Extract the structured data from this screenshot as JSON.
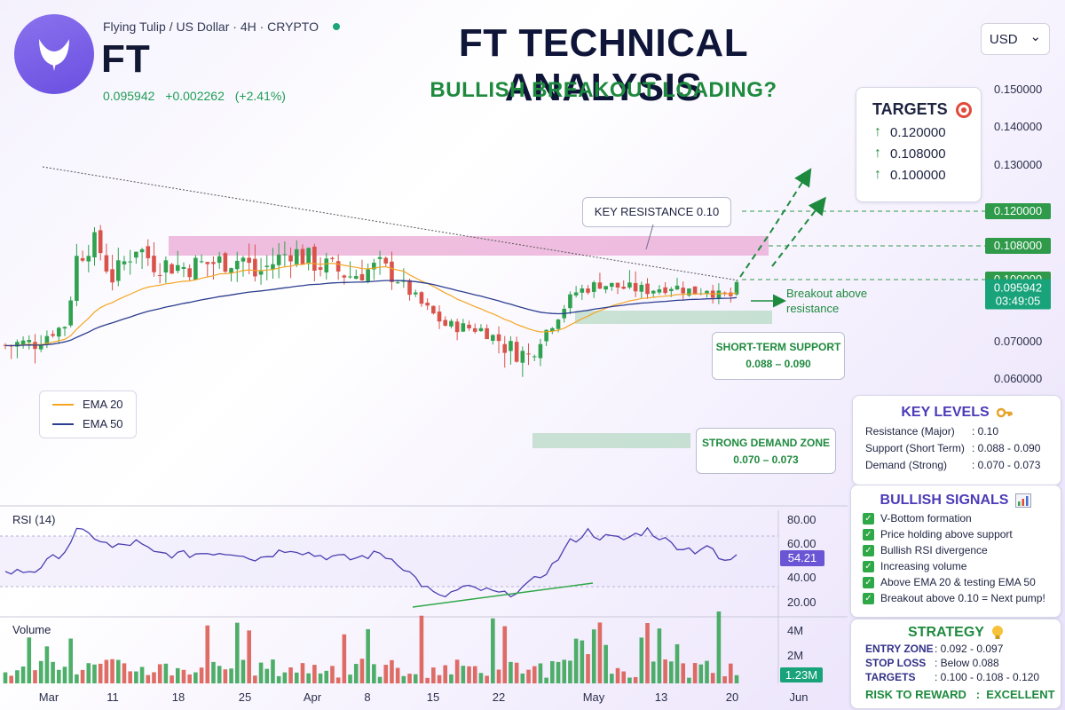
{
  "header": {
    "symbol_desc": "Flying Tulip / US Dollar · 4H · CRYPTO",
    "ticker": "FT",
    "last_price": "0.095942",
    "change": "+0.002262",
    "change_pct": "(+2.41%)",
    "title": "FT TECHNICAL ANALYSIS",
    "subtitle": "BULLISH BREAKOUT LOADING?",
    "currency": "USD",
    "currency_caret": "⌄"
  },
  "colors": {
    "up": "#2fa14f",
    "down": "#d9534a",
    "ema20": "#f5a623",
    "ema50": "#2c3e8f",
    "rsi": "#4a3fb0",
    "accent_green": "#1e8a3e"
  },
  "chart_data": {
    "type": "candlestick",
    "title": "FT TECHNICAL ANALYSIS",
    "x_ticks": [
      "Mar",
      "11",
      "18",
      "25",
      "Apr",
      "8",
      "15",
      "22",
      "May",
      "13",
      "20",
      "Jun"
    ],
    "y_ticks": [
      "0.150000",
      "0.140000",
      "0.130000",
      "0.100000",
      "0.070000",
      "0.060000"
    ],
    "ylim": [
      0.055,
      0.155
    ],
    "close_path": [
      [
        0,
        0.069
      ],
      [
        5,
        0.07
      ],
      [
        10,
        0.078
      ],
      [
        12,
        0.105
      ],
      [
        15,
        0.11
      ],
      [
        18,
        0.1
      ],
      [
        22,
        0.108
      ],
      [
        25,
        0.104
      ],
      [
        30,
        0.103
      ],
      [
        35,
        0.104
      ],
      [
        40,
        0.105
      ],
      [
        42,
        0.101
      ],
      [
        48,
        0.107
      ],
      [
        52,
        0.104
      ],
      [
        58,
        0.101
      ],
      [
        63,
        0.103
      ],
      [
        66,
        0.1
      ],
      [
        70,
        0.088
      ],
      [
        74,
        0.078
      ],
      [
        77,
        0.077
      ],
      [
        80,
        0.076
      ],
      [
        84,
        0.069
      ],
      [
        88,
        0.066
      ],
      [
        90,
        0.072
      ],
      [
        92,
        0.079
      ],
      [
        94,
        0.087
      ],
      [
        96,
        0.094
      ],
      [
        98,
        0.096
      ],
      [
        100,
        0.098
      ],
      [
        104,
        0.096
      ],
      [
        108,
        0.095
      ],
      [
        112,
        0.097
      ],
      [
        116,
        0.094
      ],
      [
        118,
        0.096
      ],
      [
        120,
        0.092
      ],
      [
        122,
        0.092
      ],
      [
        123,
        0.096
      ]
    ],
    "ema20_label": "EMA 20",
    "ema50_label": "EMA 50",
    "levels": [
      {
        "price": 0.12,
        "label": "0.120000"
      },
      {
        "price": 0.108,
        "label": "0.108000"
      },
      {
        "price": 0.1,
        "label": "0.100000"
      }
    ],
    "current_price": {
      "price": 0.095942,
      "label": "0.095942",
      "countdown": "03:49:05"
    },
    "zones": {
      "resistance": [
        0.106,
        0.1105
      ],
      "short_term_support": [
        0.088,
        0.09
      ],
      "strong_demand": [
        0.07,
        0.073
      ]
    },
    "rsi": {
      "label": "RSI (14)",
      "ticks": [
        "80.00",
        "60.00",
        "40.00",
        "20.00"
      ],
      "ylim": [
        15,
        85
      ],
      "current": "54.21",
      "path": [
        [
          0,
          42
        ],
        [
          5,
          44
        ],
        [
          10,
          58
        ],
        [
          12,
          72
        ],
        [
          15,
          68
        ],
        [
          18,
          60
        ],
        [
          22,
          64
        ],
        [
          25,
          56
        ],
        [
          30,
          55
        ],
        [
          35,
          57
        ],
        [
          40,
          56
        ],
        [
          42,
          52
        ],
        [
          48,
          60
        ],
        [
          52,
          55
        ],
        [
          58,
          52
        ],
        [
          63,
          56
        ],
        [
          66,
          50
        ],
        [
          70,
          34
        ],
        [
          73,
          24
        ],
        [
          77,
          31
        ],
        [
          80,
          30
        ],
        [
          84,
          26
        ],
        [
          88,
          33
        ],
        [
          92,
          47
        ],
        [
          95,
          64
        ],
        [
          98,
          72
        ],
        [
          100,
          68
        ],
        [
          104,
          66
        ],
        [
          108,
          73
        ],
        [
          112,
          63
        ],
        [
          116,
          58
        ],
        [
          118,
          62
        ],
        [
          120,
          52
        ],
        [
          122,
          50
        ],
        [
          123,
          56
        ]
      ]
    },
    "volume": {
      "label": "Volume",
      "ticks": [
        "4M",
        "2M"
      ],
      "current": "1.23M"
    }
  },
  "annotations": {
    "key_resistance": "KEY RESISTANCE 0.10",
    "breakout_line1": "Breakout above",
    "breakout_line2": "resistance",
    "short_support_title": "SHORT-TERM SUPPORT",
    "short_support_range": "0.088 – 0.090",
    "demand_title": "STRONG DEMAND ZONE",
    "demand_range": "0.070 – 0.073"
  },
  "targets": {
    "title": "TARGETS",
    "items": [
      "0.120000",
      "0.108000",
      "0.100000"
    ]
  },
  "key_levels": {
    "title": "KEY LEVELS",
    "rows": [
      {
        "k": "Resistance (Major)",
        "v": ": 0.10"
      },
      {
        "k": "Support (Short Term)",
        "v": ": 0.088 - 0.090"
      },
      {
        "k": "Demand (Strong)",
        "v": ": 0.070 - 0.073"
      }
    ]
  },
  "signals": {
    "title": "BULLISH SIGNALS",
    "items": [
      "V-Bottom formation",
      "Price holding above support",
      "Bullish RSI divergence",
      "Increasing volume",
      "Above EMA 20 & testing EMA 50",
      "Breakout above 0.10 = Next pump!"
    ]
  },
  "strategy": {
    "title": "STRATEGY",
    "rows": [
      {
        "k": "ENTRY ZONE",
        "v": ": 0.092 - 0.097"
      },
      {
        "k": "STOP LOSS",
        "v": ": Below 0.088"
      },
      {
        "k": "TARGETS",
        "v": ": 0.100 - 0.108 - 0.120"
      }
    ],
    "risk_reward": "RISK TO REWARD   :  EXCELLENT"
  }
}
